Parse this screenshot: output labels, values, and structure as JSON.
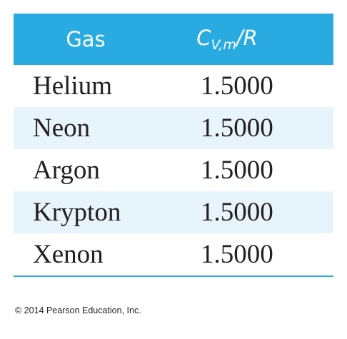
{
  "table": {
    "header": {
      "col1": "Gas",
      "col2_main": "C",
      "col2_sub": "V,m",
      "col2_tail": "/R"
    },
    "rows": [
      {
        "gas": "Helium",
        "value": "1.5000"
      },
      {
        "gas": "Neon",
        "value": "1.5000"
      },
      {
        "gas": "Argon",
        "value": "1.5000"
      },
      {
        "gas": "Krypton",
        "value": "1.5000"
      },
      {
        "gas": "Xenon",
        "value": "1.5000"
      }
    ]
  },
  "footer": {
    "copyright": "© 2014 Pearson Education, Inc."
  },
  "colors": {
    "header_bg": "#29abe2",
    "row_shade": "#e8f4fb",
    "text": "#231f20"
  }
}
